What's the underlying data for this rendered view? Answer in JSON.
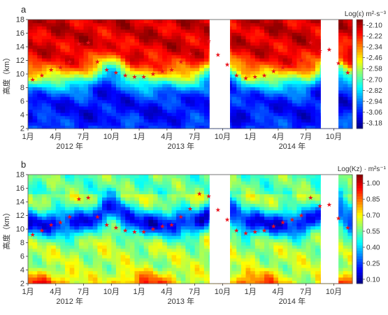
{
  "chart_data": [
    {
      "id": "a",
      "type": "heatmap",
      "panel_label": "a",
      "colorbar_title": "Log(ε) m²·s⁻³",
      "colorbar_ticks": [
        "-2.10",
        "-2.22",
        "-2.34",
        "-2.46",
        "-2.58",
        "-2.70",
        "-2.82",
        "-2.94",
        "-3.06",
        "-3.18"
      ],
      "colorbar_range": [
        -3.24,
        -2.04
      ],
      "colorscale": "jet",
      "ylabel": "高度（km）",
      "ylim": [
        2,
        18
      ],
      "yticks": [
        "2",
        "4",
        "6",
        "8",
        "10",
        "12",
        "14",
        "16",
        "18"
      ],
      "xlim_month_index": [
        0,
        35
      ],
      "x_month_ticks": [
        {
          "m": 0,
          "label": "1月"
        },
        {
          "m": 3,
          "label": "4月"
        },
        {
          "m": 6,
          "label": "7月"
        },
        {
          "m": 9,
          "label": "10月"
        },
        {
          "m": 12,
          "label": "1月"
        },
        {
          "m": 15,
          "label": "4月"
        },
        {
          "m": 18,
          "label": "7月"
        },
        {
          "m": 21,
          "label": "10月"
        },
        {
          "m": 24,
          "label": "1月"
        },
        {
          "m": 27,
          "label": "4月"
        },
        {
          "m": 30,
          "label": "7月"
        },
        {
          "m": 33,
          "label": "10月"
        }
      ],
      "x_year_labels": [
        {
          "m": 4.5,
          "label": "2012 年"
        },
        {
          "m": 16.5,
          "label": "2013 年"
        },
        {
          "m": 28.5,
          "label": "2014 年"
        }
      ],
      "gaps_month_index": [
        [
          19.6,
          21.8
        ],
        [
          31.6,
          33.5
        ]
      ],
      "description": "High ε (red/orange) aloft above the tropopause, low ε (blue/cyan) in the lower troposphere below ~8–10 km",
      "tropopause_series": {
        "name": "",
        "marker": "red-star",
        "x_month": [
          0,
          1,
          2,
          3,
          4,
          5,
          6,
          7,
          8,
          9,
          10,
          11,
          12,
          13,
          14,
          15,
          16,
          17,
          18,
          19,
          20,
          21,
          22,
          23,
          24,
          25,
          26,
          27,
          28,
          29,
          30,
          31,
          32,
          33,
          34
        ],
        "y_km": [
          9.2,
          9.8,
          10.6,
          11.0,
          11.8,
          14.4,
          14.6,
          11.8,
          10.6,
          10.2,
          9.8,
          9.6,
          9.6,
          10.0,
          10.4,
          10.6,
          11.8,
          13.0,
          15.2,
          14.8,
          12.8,
          11.4,
          9.8,
          9.4,
          9.6,
          9.8,
          10.4,
          11.0,
          11.4,
          12.0,
          14.6,
          13.4,
          13.6,
          11.6,
          10.2
        ]
      }
    },
    {
      "id": "b",
      "type": "heatmap",
      "panel_label": "b",
      "colorbar_title": "Log(Kz) · m²s⁻¹",
      "colorbar_ticks": [
        "1.00",
        "0.85",
        "0.70",
        "0.55",
        "0.40",
        "0.25",
        "0.10"
      ],
      "colorbar_range": [
        0.06,
        1.08
      ],
      "colorscale": "jet",
      "ylabel": "高度（km）",
      "ylim": [
        2,
        18
      ],
      "yticks": [
        "2",
        "4",
        "6",
        "8",
        "10",
        "12",
        "14",
        "16",
        "18"
      ],
      "xlim_month_index": [
        0,
        35
      ],
      "x_month_ticks": [
        {
          "m": 0,
          "label": "1月"
        },
        {
          "m": 3,
          "label": "4月"
        },
        {
          "m": 6,
          "label": "7月"
        },
        {
          "m": 9,
          "label": "10月"
        },
        {
          "m": 12,
          "label": "1月"
        },
        {
          "m": 15,
          "label": "4月"
        },
        {
          "m": 18,
          "label": "7月"
        },
        {
          "m": 21,
          "label": "10月"
        },
        {
          "m": 24,
          "label": "1月"
        },
        {
          "m": 27,
          "label": "4月"
        },
        {
          "m": 30,
          "label": "7月"
        },
        {
          "m": 33,
          "label": "10月"
        }
      ],
      "x_year_labels": [
        {
          "m": 4.5,
          "label": "2012 年"
        },
        {
          "m": 16.5,
          "label": "2013 年"
        },
        {
          "m": 28.5,
          "label": "2014 年"
        }
      ],
      "gaps_month_index": [
        [
          19.6,
          21.8
        ],
        [
          31.6,
          33.5
        ]
      ],
      "description": "Low Kz (dark blue) around 8–14 km near the tropopause, higher Kz (green/yellow/red) near the surface 2–4 km and in the upper levels",
      "tropopause_series": {
        "name": "",
        "marker": "red-star",
        "x_month": [
          0,
          1,
          2,
          3,
          4,
          5,
          6,
          7,
          8,
          9,
          10,
          11,
          12,
          13,
          14,
          15,
          16,
          17,
          18,
          19,
          20,
          21,
          22,
          23,
          24,
          25,
          26,
          27,
          28,
          29,
          30,
          31,
          32,
          33,
          34
        ],
        "y_km": [
          9.2,
          9.8,
          10.6,
          11.0,
          11.8,
          14.4,
          14.6,
          11.8,
          10.6,
          10.2,
          9.8,
          9.6,
          9.6,
          10.0,
          10.4,
          10.6,
          11.8,
          13.0,
          15.2,
          14.8,
          12.8,
          11.4,
          9.8,
          9.4,
          9.6,
          9.8,
          10.4,
          11.0,
          11.4,
          12.0,
          14.6,
          13.4,
          13.6,
          11.6,
          10.2
        ]
      }
    }
  ]
}
